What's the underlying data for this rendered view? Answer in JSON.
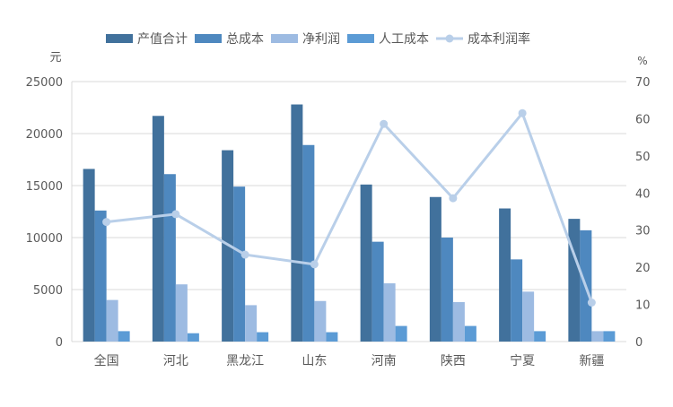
{
  "chart_data": {
    "type": "bar",
    "categories": [
      "全国",
      "河北",
      "黑龙江",
      "山东",
      "河南",
      "陕西",
      "宁夏",
      "新疆"
    ],
    "series": [
      {
        "name": "产值合计",
        "type": "bar",
        "axis": "left",
        "color": "#41719c",
        "values": [
          16600,
          21700,
          18400,
          22800,
          15100,
          13900,
          12800,
          11800
        ]
      },
      {
        "name": "总成本",
        "type": "bar",
        "axis": "left",
        "color": "#4e88bf",
        "values": [
          12600,
          16100,
          14900,
          18900,
          9600,
          10000,
          7900,
          10700
        ]
      },
      {
        "name": "净利润",
        "type": "bar",
        "axis": "left",
        "color": "#9dbbe2",
        "values": [
          4000,
          5500,
          3500,
          3900,
          5600,
          3800,
          4800,
          1000
        ]
      },
      {
        "name": "人工成本",
        "type": "bar",
        "axis": "left",
        "color": "#5b9bd5",
        "values": [
          1000,
          800,
          900,
          900,
          1500,
          1500,
          1000,
          1000
        ]
      },
      {
        "name": "成本利润率",
        "type": "line",
        "axis": "right",
        "color": "#b9cfe9",
        "values": [
          32.2,
          34.3,
          23.4,
          20.8,
          58.6,
          38.6,
          61.5,
          10.5
        ]
      }
    ],
    "ylabel": "元",
    "y2label": "%",
    "ylim": [
      0,
      25000
    ],
    "y2lim": [
      0,
      70
    ],
    "yticks": [
      "0",
      "5000",
      "10000",
      "15000",
      "20000",
      "25000"
    ],
    "y2ticks": [
      "0",
      "10",
      "20",
      "30",
      "40",
      "50",
      "60",
      "70"
    ],
    "grid": true,
    "legend": "top"
  }
}
